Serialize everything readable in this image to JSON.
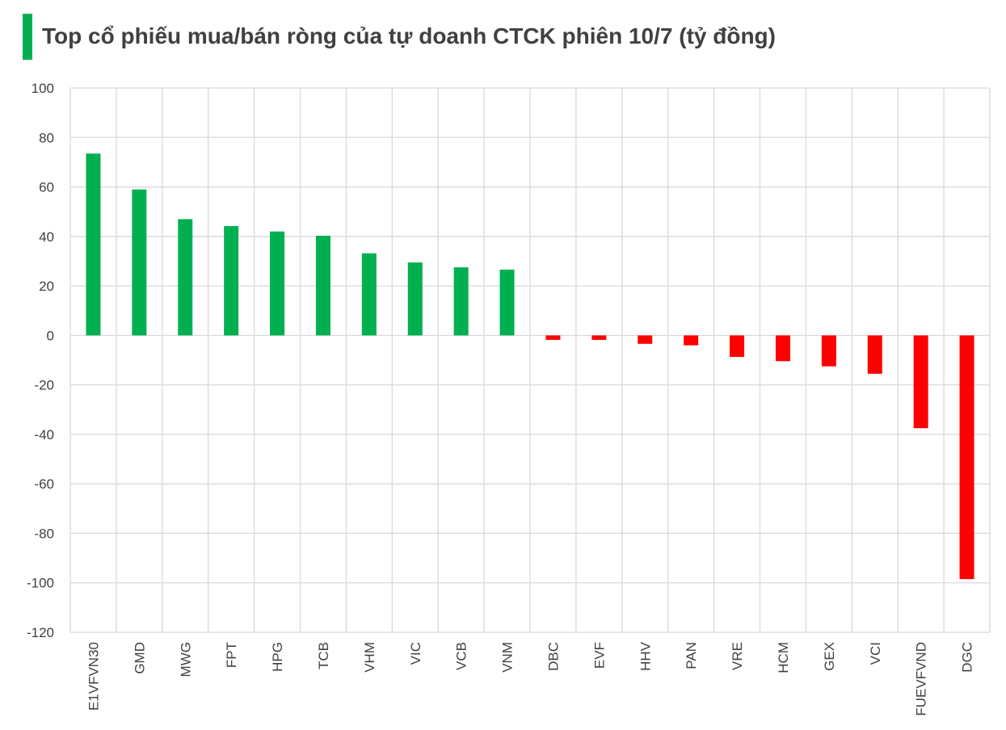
{
  "chart_data": {
    "type": "bar",
    "title": "Top cổ phiếu mua/bán ròng của tự doanh CTCK phiên 10/7 (tỷ đồng)",
    "categories": [
      "E1VFVN30",
      "GMD",
      "MWG",
      "FPT",
      "HPG",
      "TCB",
      "VHM",
      "VIC",
      "VCB",
      "VNM",
      "DBC",
      "EVF",
      "HHV",
      "PAN",
      "VRE",
      "HCM",
      "GEX",
      "VCI",
      "FUEVFVND",
      "DGC"
    ],
    "values": [
      73.5,
      59,
      47,
      44.2,
      42,
      40.3,
      33.2,
      29.5,
      27.5,
      26.6,
      -1.8,
      -1.8,
      -3.4,
      -4,
      -8.7,
      -10.4,
      -12.5,
      -15.5,
      -37.5,
      -98.5
    ],
    "ylim": [
      -120,
      100
    ],
    "yticks": [
      100,
      80,
      60,
      40,
      20,
      0,
      -20,
      -40,
      -60,
      -80,
      -100,
      -120
    ],
    "grid": true,
    "colors": {
      "positive": "#00b050",
      "negative": "#ff0000",
      "grid": "#d9d9d9",
      "text": "#404040",
      "accent": "#00b050"
    }
  }
}
